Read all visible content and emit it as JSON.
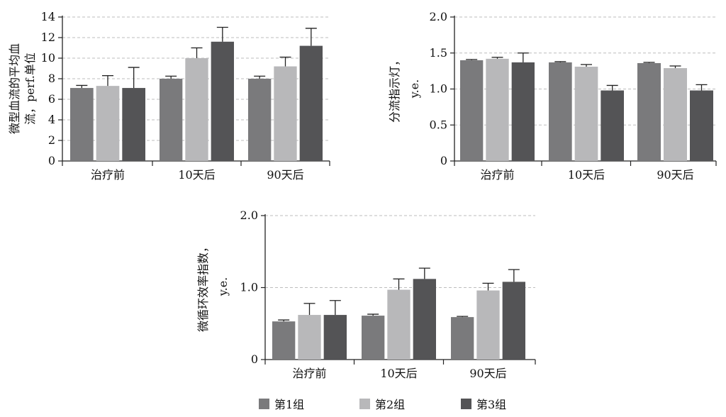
{
  "chart_data": [
    {
      "type": "bar",
      "categories": [
        "治疗前",
        "10天后",
        "90天后"
      ],
      "ylabel_lines": [
        "微型血流的平均血",
        "流，perf.单位"
      ],
      "ylim": [
        0,
        14
      ],
      "yticks": [
        "0",
        "2",
        "4",
        "6",
        "8",
        "10",
        "12",
        "14"
      ],
      "grid": true,
      "series": [
        {
          "name": "第1组",
          "values": [
            7.1,
            8.0,
            8.0
          ],
          "errors": [
            0.25,
            0.25,
            0.25
          ]
        },
        {
          "name": "第2组",
          "values": [
            7.3,
            10.0,
            9.2
          ],
          "errors": [
            1.0,
            1.0,
            0.9
          ]
        },
        {
          "name": "第3组",
          "values": [
            7.1,
            11.6,
            11.2
          ],
          "errors": [
            2.0,
            1.4,
            1.7
          ]
        }
      ]
    },
    {
      "type": "bar",
      "categories": [
        "治疗前",
        "10天后",
        "90天后"
      ],
      "ylabel_lines": [
        "分流指示灯，",
        "y.e."
      ],
      "ylim": [
        0,
        2.0
      ],
      "yticks": [
        "0",
        "0.5",
        "1.0",
        "1.5",
        "2.0"
      ],
      "grid": true,
      "series": [
        {
          "name": "第1组",
          "values": [
            1.4,
            1.37,
            1.36
          ],
          "errors": [
            0.01,
            0.01,
            0.01
          ]
        },
        {
          "name": "第2组",
          "values": [
            1.42,
            1.31,
            1.29
          ],
          "errors": [
            0.02,
            0.03,
            0.03
          ]
        },
        {
          "name": "第3组",
          "values": [
            1.37,
            0.98,
            0.98
          ],
          "errors": [
            0.13,
            0.07,
            0.08
          ]
        }
      ]
    },
    {
      "type": "bar",
      "categories": [
        "治疗前",
        "10天后",
        "90天后"
      ],
      "ylabel_lines": [
        "微循环效率指数，",
        "y.e."
      ],
      "ylim": [
        0,
        2.0
      ],
      "yticks": [
        "0",
        "1.0",
        "2.0"
      ],
      "grid": true,
      "series": [
        {
          "name": "第1组",
          "values": [
            0.53,
            0.61,
            0.59
          ],
          "errors": [
            0.02,
            0.02,
            0.01
          ]
        },
        {
          "name": "第2组",
          "values": [
            0.62,
            0.97,
            0.96
          ],
          "errors": [
            0.16,
            0.15,
            0.1
          ]
        },
        {
          "name": "第3组",
          "values": [
            0.62,
            1.12,
            1.08
          ],
          "errors": [
            0.2,
            0.15,
            0.17
          ]
        }
      ]
    }
  ],
  "legend": {
    "position": "bottom-center",
    "items": [
      {
        "label": "第1组",
        "color": "#7a7a7c"
      },
      {
        "label": "第2组",
        "color": "#b8b8ba"
      },
      {
        "label": "第3组",
        "color": "#545456"
      }
    ]
  }
}
